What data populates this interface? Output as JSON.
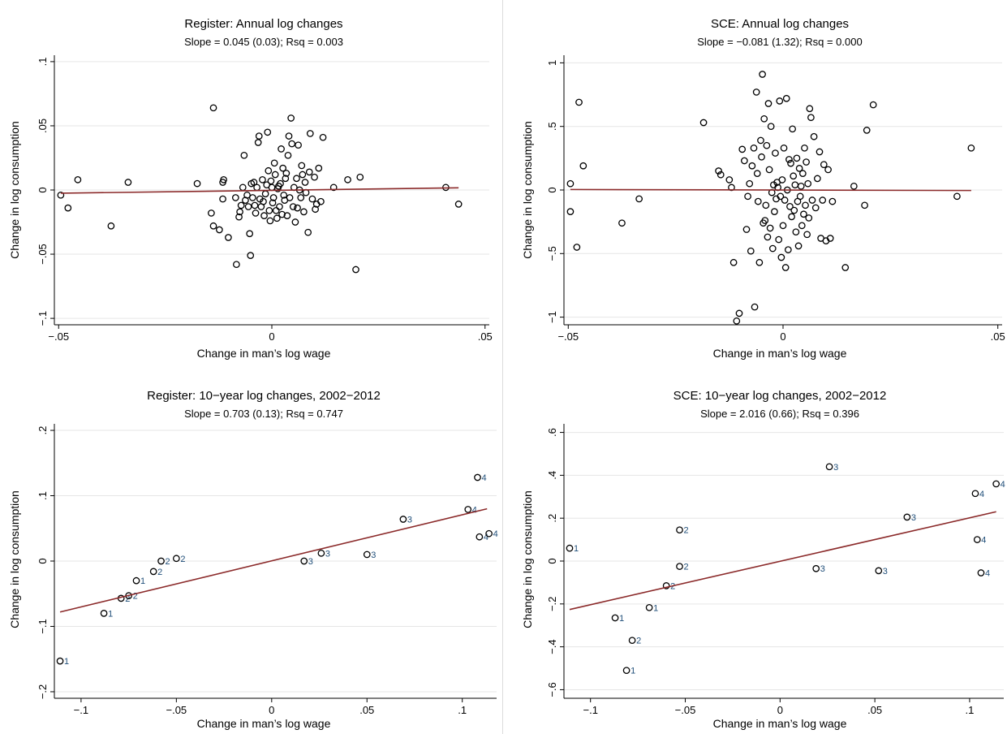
{
  "chart_data": [
    {
      "type": "scatter",
      "title": "Register: Annual log changes",
      "subtitle": "Slope = 0.045 (0.03); Rsq = 0.003",
      "xlabel": "Change in man’s log wage",
      "ylabel": "Change in log consumption",
      "xlim": [
        -0.051,
        0.051
      ],
      "ylim": [
        -0.105,
        0.105
      ],
      "xticks": [
        -0.05,
        0,
        0.05
      ],
      "xticklabels": [
        "−.05",
        "0",
        ".05"
      ],
      "yticks": [
        -0.1,
        -0.05,
        0,
        0.05,
        0.1
      ],
      "yticklabels": [
        "−.1",
        "−.05",
        "0",
        ".05",
        ".1"
      ],
      "fit_line": {
        "x": [
          -0.0495,
          0.0438
        ],
        "y": [
          -0.0025,
          0.0017
        ]
      },
      "points": [
        [
          -0.0495,
          -0.004
        ],
        [
          -0.0478,
          -0.014
        ],
        [
          -0.0455,
          0.008
        ],
        [
          -0.0377,
          -0.028
        ],
        [
          -0.0337,
          0.006
        ],
        [
          -0.0175,
          0.005
        ],
        [
          -0.0137,
          0.064
        ],
        [
          -0.0142,
          -0.018
        ],
        [
          -0.0137,
          -0.028
        ],
        [
          -0.0123,
          -0.031
        ],
        [
          -0.0115,
          0.006
        ],
        [
          -0.0113,
          0.008
        ],
        [
          -0.0115,
          -0.007
        ],
        [
          -0.0102,
          -0.037
        ],
        [
          -0.0085,
          -0.006
        ],
        [
          -0.0083,
          -0.058
        ],
        [
          -0.0077,
          -0.021
        ],
        [
          -0.0075,
          -0.017
        ],
        [
          -0.0072,
          -0.012
        ],
        [
          -0.0068,
          0.002
        ],
        [
          -0.0065,
          0.027
        ],
        [
          -0.0062,
          -0.008
        ],
        [
          -0.0058,
          -0.004
        ],
        [
          -0.0055,
          -0.013
        ],
        [
          -0.0052,
          -0.034
        ],
        [
          -0.005,
          -0.051
        ],
        [
          -0.0048,
          0.005
        ],
        [
          -0.0045,
          -0.006
        ],
        [
          -0.0042,
          0.006
        ],
        [
          -0.004,
          -0.012
        ],
        [
          -0.0038,
          -0.018
        ],
        [
          -0.0035,
          0.002
        ],
        [
          -0.0032,
          0.037
        ],
        [
          -0.003,
          0.042
        ],
        [
          -0.0028,
          -0.007
        ],
        [
          -0.0025,
          -0.013
        ],
        [
          -0.0022,
          0.008
        ],
        [
          -0.002,
          -0.009
        ],
        [
          -0.0018,
          -0.02
        ],
        [
          -0.0015,
          -0.003
        ],
        [
          -0.0012,
          0.004
        ],
        [
          -0.001,
          0.045
        ],
        [
          -0.0008,
          0.015
        ],
        [
          -0.0006,
          -0.016
        ],
        [
          -0.0004,
          -0.024
        ],
        [
          -0.0002,
          0.007
        ],
        [
          0.0,
          0.002
        ],
        [
          0.0002,
          -0.01
        ],
        [
          0.0004,
          -0.006
        ],
        [
          0.0006,
          0.021
        ],
        [
          0.0008,
          0.012
        ],
        [
          0.001,
          -0.016
        ],
        [
          0.0012,
          -0.022
        ],
        [
          0.0014,
          0.001
        ],
        [
          0.0016,
          0.003
        ],
        [
          0.0018,
          -0.013
        ],
        [
          0.002,
          0.005
        ],
        [
          0.0022,
          0.032
        ],
        [
          0.0024,
          -0.019
        ],
        [
          0.0026,
          0.017
        ],
        [
          0.0028,
          -0.004
        ],
        [
          0.003,
          -0.008
        ],
        [
          0.0032,
          0.009
        ],
        [
          0.0034,
          0.013
        ],
        [
          0.0036,
          -0.02
        ],
        [
          0.0038,
          0.027
        ],
        [
          0.004,
          0.042
        ],
        [
          0.0042,
          -0.006
        ],
        [
          0.0045,
          0.056
        ],
        [
          0.0047,
          0.036
        ],
        [
          0.005,
          -0.013
        ],
        [
          0.0052,
          0.002
        ],
        [
          0.0055,
          -0.025
        ],
        [
          0.0058,
          0.009
        ],
        [
          0.006,
          -0.014
        ],
        [
          0.0062,
          0.035
        ],
        [
          0.0065,
          0.0
        ],
        [
          0.0068,
          -0.006
        ],
        [
          0.007,
          0.019
        ],
        [
          0.0072,
          0.012
        ],
        [
          0.0075,
          -0.017
        ],
        [
          0.0078,
          0.006
        ],
        [
          0.008,
          -0.002
        ],
        [
          0.0085,
          -0.033
        ],
        [
          0.0088,
          0.014
        ],
        [
          0.009,
          0.044
        ],
        [
          0.0095,
          -0.007
        ],
        [
          0.01,
          0.01
        ],
        [
          0.0102,
          -0.015
        ],
        [
          0.0105,
          -0.011
        ],
        [
          0.011,
          0.017
        ],
        [
          0.0115,
          -0.009
        ],
        [
          0.012,
          0.041
        ],
        [
          0.0145,
          0.002
        ],
        [
          0.0178,
          0.008
        ],
        [
          0.0197,
          -0.062
        ],
        [
          0.0207,
          0.01
        ],
        [
          0.0408,
          0.002
        ],
        [
          0.0438,
          -0.011
        ]
      ]
    },
    {
      "type": "scatter",
      "title": "SCE: Annual log changes",
      "subtitle": "Slope = −0.081 (1.32); Rsq = 0.000",
      "xlabel": "Change in man’s log wage",
      "ylabel": "Change in log consumption",
      "xlim": [
        -0.051,
        0.051
      ],
      "ylim": [
        -1.06,
        1.06
      ],
      "xticks": [
        -0.05,
        0,
        0.05
      ],
      "xticklabels": [
        "−.05",
        "0",
        ".05"
      ],
      "yticks": [
        -1,
        -0.5,
        0,
        0.5,
        1
      ],
      "yticklabels": [
        "−1",
        "−.5",
        "0",
        ".5",
        "1"
      ],
      "fit_line": {
        "x": [
          -0.0495,
          0.0438
        ],
        "y": [
          0.004,
          -0.004
        ]
      },
      "points": [
        [
          -0.0495,
          0.05
        ],
        [
          -0.0495,
          -0.17
        ],
        [
          -0.048,
          -0.45
        ],
        [
          -0.0475,
          0.69
        ],
        [
          -0.0465,
          0.19
        ],
        [
          -0.0375,
          -0.26
        ],
        [
          -0.0335,
          -0.07
        ],
        [
          -0.0185,
          0.53
        ],
        [
          -0.015,
          0.15
        ],
        [
          -0.0145,
          0.12
        ],
        [
          -0.0125,
          0.08
        ],
        [
          -0.012,
          0.02
        ],
        [
          -0.0115,
          -0.57
        ],
        [
          -0.0108,
          -1.03
        ],
        [
          -0.0102,
          -0.97
        ],
        [
          -0.0095,
          0.32
        ],
        [
          -0.009,
          0.23
        ],
        [
          -0.0085,
          -0.31
        ],
        [
          -0.0082,
          -0.05
        ],
        [
          -0.0078,
          0.05
        ],
        [
          -0.0075,
          -0.48
        ],
        [
          -0.0072,
          0.19
        ],
        [
          -0.0068,
          0.33
        ],
        [
          -0.0066,
          -0.92
        ],
        [
          -0.0062,
          0.77
        ],
        [
          -0.006,
          0.13
        ],
        [
          -0.0058,
          -0.09
        ],
        [
          -0.0055,
          -0.57
        ],
        [
          -0.0052,
          0.39
        ],
        [
          -0.005,
          0.26
        ],
        [
          -0.0048,
          0.91
        ],
        [
          -0.0046,
          -0.26
        ],
        [
          -0.0044,
          0.56
        ],
        [
          -0.0042,
          -0.24
        ],
        [
          -0.004,
          -0.12
        ],
        [
          -0.0038,
          0.35
        ],
        [
          -0.0036,
          -0.37
        ],
        [
          -0.0034,
          0.68
        ],
        [
          -0.0032,
          0.16
        ],
        [
          -0.003,
          -0.3
        ],
        [
          -0.0028,
          0.5
        ],
        [
          -0.0026,
          -0.02
        ],
        [
          -0.0024,
          -0.46
        ],
        [
          -0.0022,
          0.04
        ],
        [
          -0.002,
          -0.17
        ],
        [
          -0.0018,
          0.29
        ],
        [
          -0.0016,
          -0.07
        ],
        [
          -0.0014,
          0.06
        ],
        [
          -0.0012,
          0.02
        ],
        [
          -0.001,
          -0.39
        ],
        [
          -0.0008,
          0.7
        ],
        [
          -0.0006,
          -0.05
        ],
        [
          -0.0004,
          -0.53
        ],
        [
          -0.0002,
          0.08
        ],
        [
          0.0,
          -0.28
        ],
        [
          0.0002,
          0.33
        ],
        [
          0.0004,
          -0.08
        ],
        [
          0.0006,
          -0.61
        ],
        [
          0.0008,
          0.72
        ],
        [
          0.001,
          0.0
        ],
        [
          0.0012,
          -0.47
        ],
        [
          0.0014,
          0.24
        ],
        [
          0.0016,
          -0.13
        ],
        [
          0.0018,
          0.21
        ],
        [
          0.002,
          -0.21
        ],
        [
          0.0022,
          0.48
        ],
        [
          0.0024,
          0.11
        ],
        [
          0.0026,
          -0.16
        ],
        [
          0.0028,
          0.04
        ],
        [
          0.003,
          -0.33
        ],
        [
          0.0032,
          0.25
        ],
        [
          0.0034,
          -0.09
        ],
        [
          0.0036,
          -0.44
        ],
        [
          0.0038,
          0.17
        ],
        [
          0.004,
          -0.05
        ],
        [
          0.0042,
          0.03
        ],
        [
          0.0044,
          -0.28
        ],
        [
          0.0046,
          0.13
        ],
        [
          0.0048,
          -0.19
        ],
        [
          0.005,
          0.33
        ],
        [
          0.0052,
          -0.12
        ],
        [
          0.0054,
          0.22
        ],
        [
          0.0056,
          -0.35
        ],
        [
          0.0058,
          0.05
        ],
        [
          0.006,
          -0.22
        ],
        [
          0.0062,
          0.64
        ],
        [
          0.0065,
          0.57
        ],
        [
          0.0068,
          -0.08
        ],
        [
          0.0072,
          0.42
        ],
        [
          0.0076,
          -0.14
        ],
        [
          0.008,
          0.09
        ],
        [
          0.0085,
          0.3
        ],
        [
          0.0088,
          -0.38
        ],
        [
          0.0092,
          -0.08
        ],
        [
          0.0095,
          0.2
        ],
        [
          0.01,
          -0.4
        ],
        [
          0.0105,
          0.16
        ],
        [
          0.011,
          -0.38
        ],
        [
          0.0115,
          -0.09
        ],
        [
          0.0145,
          -0.61
        ],
        [
          0.0165,
          0.03
        ],
        [
          0.019,
          -0.12
        ],
        [
          0.0195,
          0.47
        ],
        [
          0.021,
          0.67
        ],
        [
          0.0405,
          -0.05
        ],
        [
          0.0438,
          0.33
        ]
      ]
    },
    {
      "type": "scatter",
      "title": "Register: 10−year log changes, 2002−2012",
      "subtitle": "Slope = 0.703 (0.13); Rsq = 0.747",
      "xlabel": "Change in man’s log wage",
      "ylabel": "Change in log consumption",
      "xlim": [
        -0.114,
        0.118
      ],
      "ylim": [
        -0.21,
        0.21
      ],
      "xticks": [
        -0.1,
        -0.05,
        0,
        0.05,
        0.1
      ],
      "xticklabels": [
        "−.1",
        "−.05",
        "0",
        ".05",
        ".1"
      ],
      "yticks": [
        -0.2,
        -0.1,
        0,
        0.1,
        0.2
      ],
      "yticklabels": [
        "−.2",
        "−.1",
        "0",
        ".1",
        ".2"
      ],
      "fit_line": {
        "x": [
          -0.111,
          0.113
        ],
        "y": [
          -0.078,
          0.08
        ]
      },
      "points": [
        {
          "x": -0.111,
          "y": -0.153,
          "label": "1"
        },
        {
          "x": -0.088,
          "y": -0.08,
          "label": "1"
        },
        {
          "x": -0.079,
          "y": -0.057,
          "label": "2"
        },
        {
          "x": -0.075,
          "y": -0.053,
          "label": "2"
        },
        {
          "x": -0.071,
          "y": -0.03,
          "label": "1"
        },
        {
          "x": -0.062,
          "y": -0.016,
          "label": "2"
        },
        {
          "x": -0.058,
          "y": 0.0,
          "label": "2"
        },
        {
          "x": -0.05,
          "y": 0.004,
          "label": "2"
        },
        {
          "x": 0.017,
          "y": 0.0,
          "label": "3"
        },
        {
          "x": 0.026,
          "y": 0.012,
          "label": "3"
        },
        {
          "x": 0.05,
          "y": 0.01,
          "label": "3"
        },
        {
          "x": 0.069,
          "y": 0.064,
          "label": "3"
        },
        {
          "x": 0.103,
          "y": 0.079,
          "label": "4"
        },
        {
          "x": 0.108,
          "y": 0.128,
          "label": "4"
        },
        {
          "x": 0.109,
          "y": 0.037,
          "label": "4"
        },
        {
          "x": 0.114,
          "y": 0.042,
          "label": "4"
        }
      ]
    },
    {
      "type": "scatter",
      "title": "SCE: 10−year log changes, 2002−2012",
      "subtitle": "Slope = 2.016 (0.66); Rsq = 0.396",
      "xlabel": "Change in man’s log wage",
      "ylabel": "Change in log consumption",
      "xlim": [
        -0.114,
        0.118
      ],
      "ylim": [
        -0.64,
        0.64
      ],
      "xticks": [
        -0.1,
        -0.05,
        0,
        0.05,
        0.1
      ],
      "xticklabels": [
        "−.1",
        "−.05",
        "0",
        ".05",
        ".1"
      ],
      "yticks": [
        -0.6,
        -0.4,
        -0.2,
        0,
        0.2,
        0.4,
        0.6
      ],
      "yticklabels": [
        "−.6",
        "−.4",
        "−.2",
        "0",
        ".2",
        ".4",
        ".6"
      ],
      "fit_line": {
        "x": [
          -0.111,
          0.114
        ],
        "y": [
          -0.226,
          0.23
        ]
      },
      "points": [
        {
          "x": -0.111,
          "y": 0.06,
          "label": "1"
        },
        {
          "x": -0.087,
          "y": -0.265,
          "label": "1"
        },
        {
          "x": -0.081,
          "y": -0.51,
          "label": "1"
        },
        {
          "x": -0.078,
          "y": -0.37,
          "label": "2"
        },
        {
          "x": -0.069,
          "y": -0.217,
          "label": "1"
        },
        {
          "x": -0.06,
          "y": -0.115,
          "label": "2"
        },
        {
          "x": -0.053,
          "y": 0.145,
          "label": "2"
        },
        {
          "x": -0.053,
          "y": -0.025,
          "label": "2"
        },
        {
          "x": 0.019,
          "y": -0.035,
          "label": "3"
        },
        {
          "x": 0.026,
          "y": 0.44,
          "label": "3"
        },
        {
          "x": 0.052,
          "y": -0.045,
          "label": "3"
        },
        {
          "x": 0.067,
          "y": 0.205,
          "label": "3"
        },
        {
          "x": 0.103,
          "y": 0.315,
          "label": "4"
        },
        {
          "x": 0.104,
          "y": 0.1,
          "label": "4"
        },
        {
          "x": 0.106,
          "y": -0.055,
          "label": "4"
        },
        {
          "x": 0.114,
          "y": 0.36,
          "label": "4"
        }
      ]
    }
  ]
}
